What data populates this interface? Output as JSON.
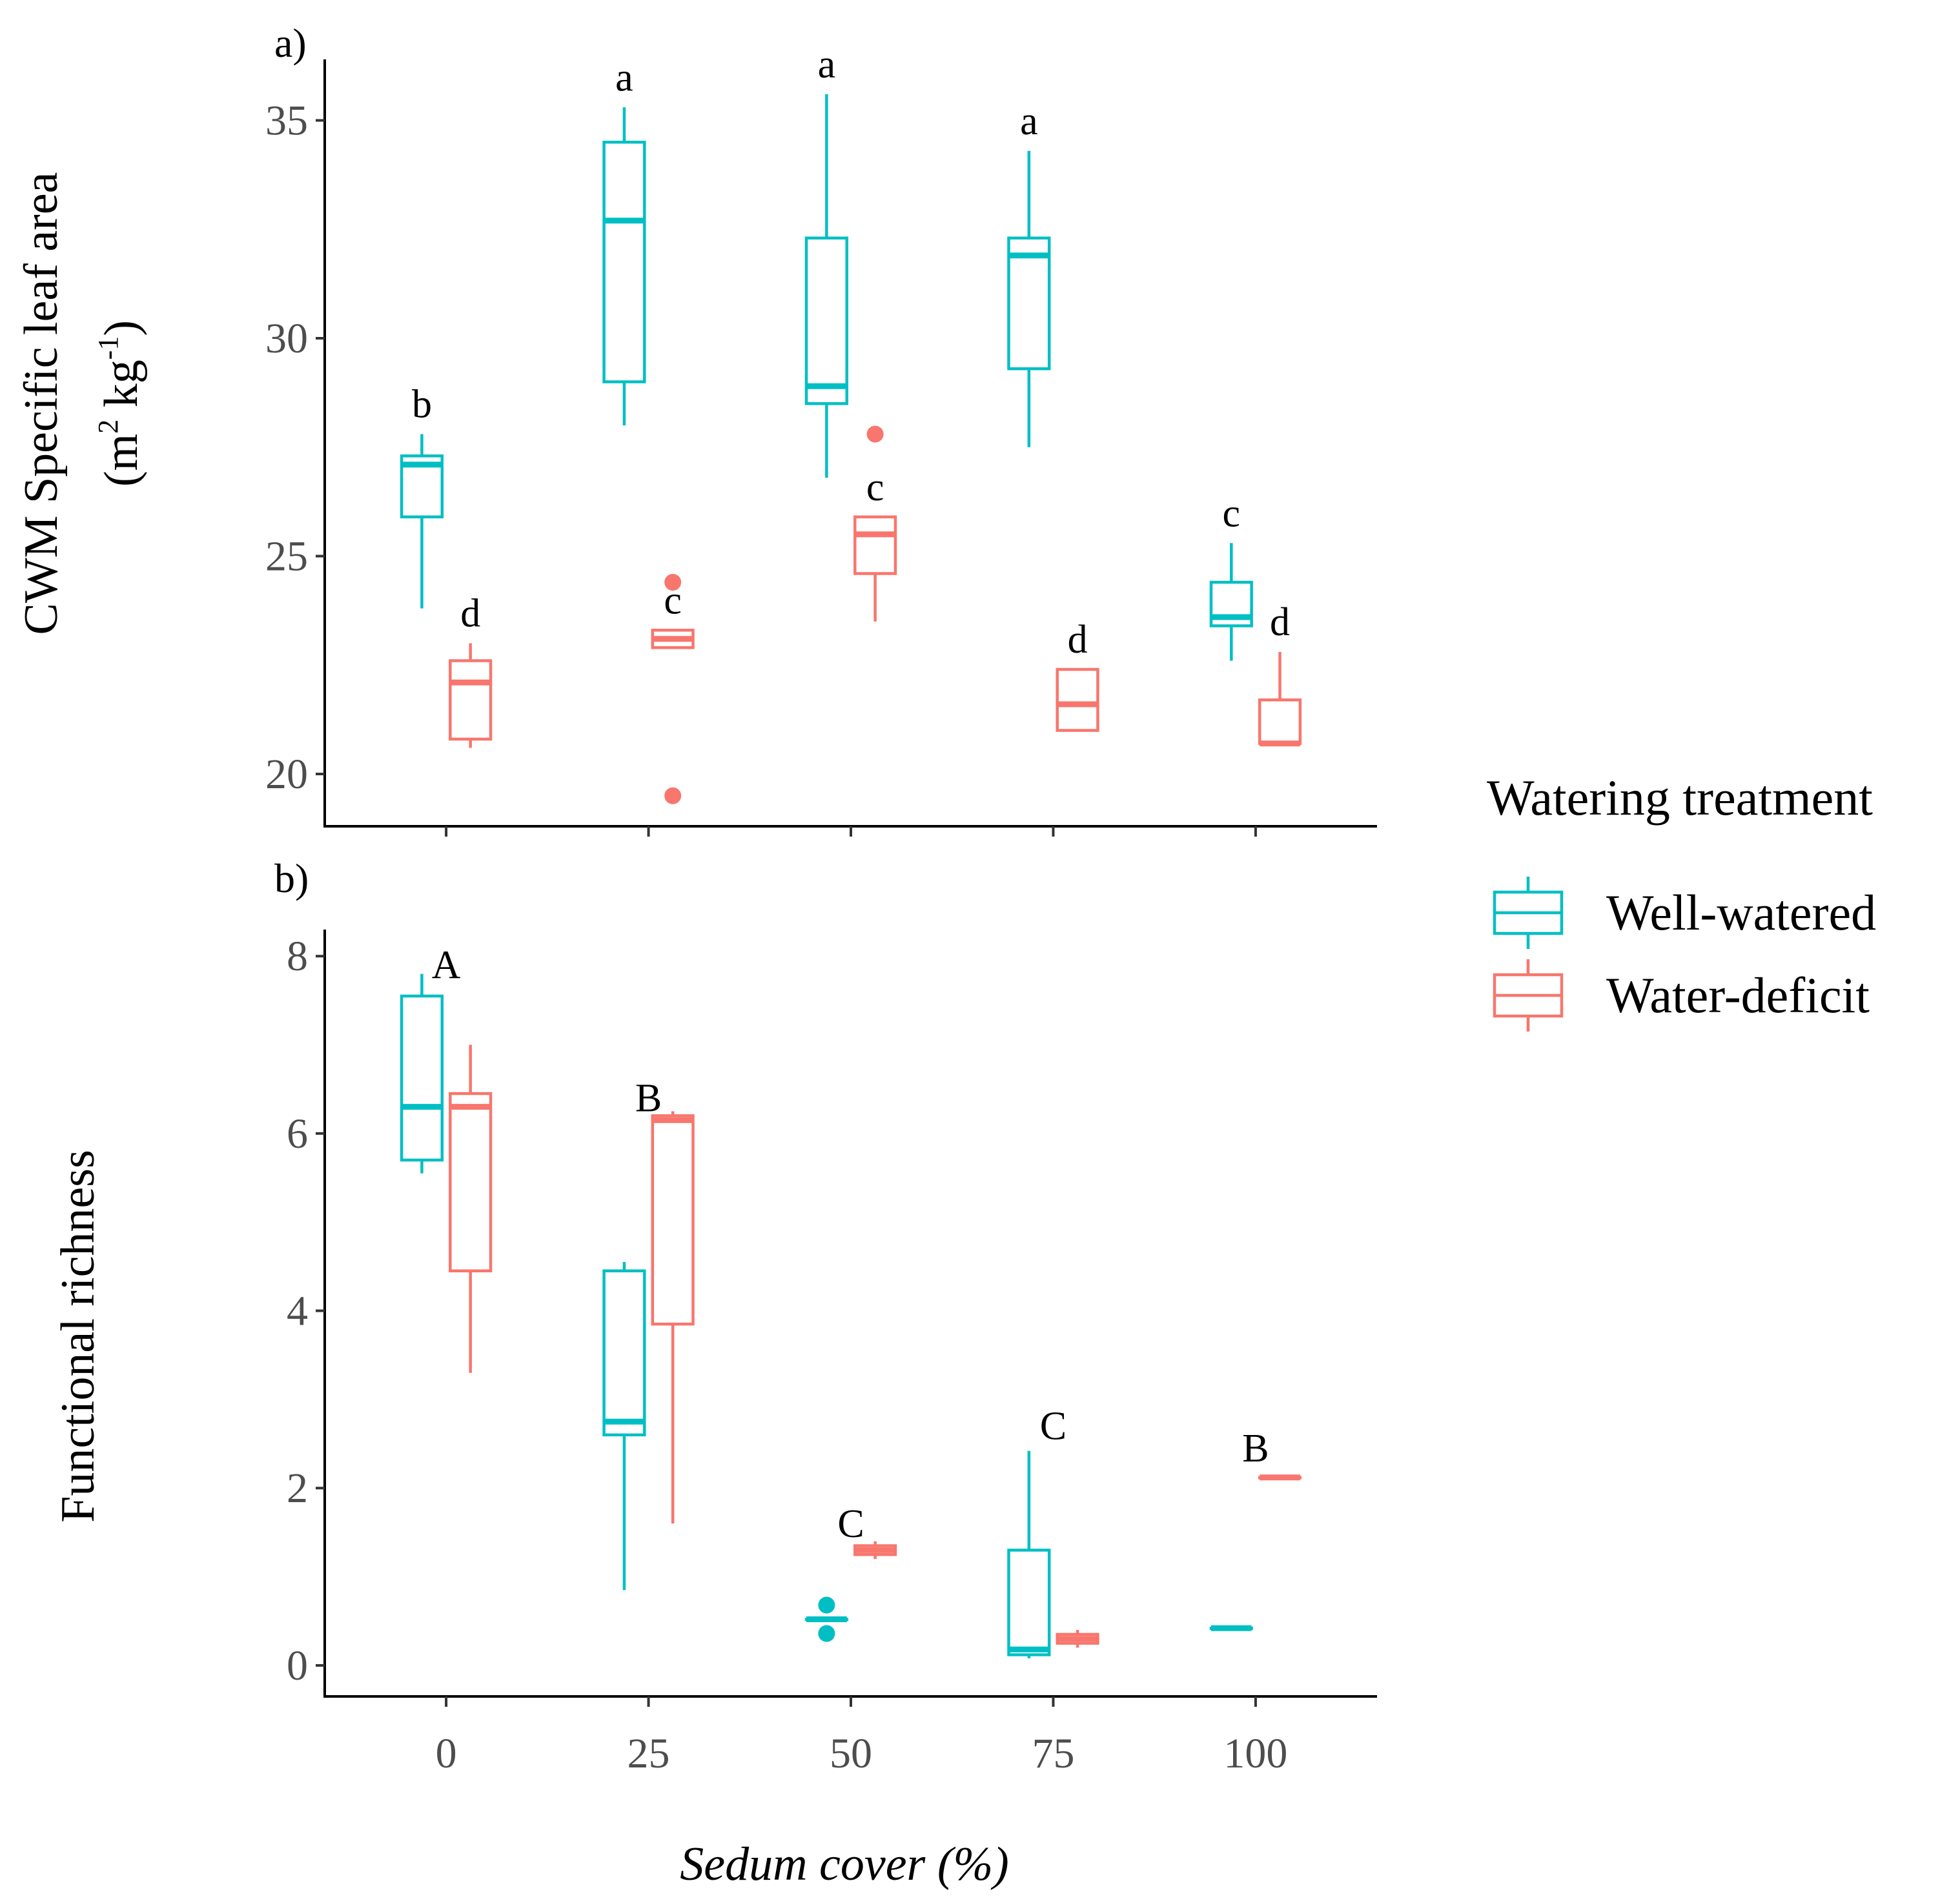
{
  "chart_data": [
    {
      "panel": "a)",
      "type": "boxplot",
      "ylabel": "CWM Specific leaf area",
      "ylabel_units": {
        "open": "(m",
        "sup1": "2",
        "mid": " kg",
        "sup2": "-1",
        "close": ")"
      },
      "xlim": [
        -15,
        115
      ],
      "ylim": [
        18.8,
        36.4
      ],
      "yticks": [
        20,
        25,
        30,
        35
      ],
      "xticks": [
        0,
        25,
        50,
        75,
        100
      ],
      "series": [
        {
          "name": "Well-watered",
          "boxes": [
            {
              "x": 0,
              "whisker_low": 23.8,
              "q1": 25.9,
              "median": 27.1,
              "q3": 27.3,
              "whisker_high": 27.8,
              "outliers": [],
              "letter": "b"
            },
            {
              "x": 25,
              "whisker_low": 28.0,
              "q1": 29.0,
              "median": 32.7,
              "q3": 34.5,
              "whisker_high": 35.3,
              "outliers": [],
              "letter": "a"
            },
            {
              "x": 50,
              "whisker_low": 26.8,
              "q1": 28.5,
              "median": 28.9,
              "q3": 32.3,
              "whisker_high": 35.6,
              "outliers": [],
              "letter": "a"
            },
            {
              "x": 75,
              "whisker_low": 27.5,
              "q1": 29.3,
              "median": 31.9,
              "q3": 32.3,
              "whisker_high": 34.3,
              "outliers": [],
              "letter": "a"
            },
            {
              "x": 100,
              "whisker_low": 22.6,
              "q1": 23.4,
              "median": 23.6,
              "q3": 24.4,
              "whisker_high": 25.3,
              "outliers": [],
              "letter": "c"
            }
          ]
        },
        {
          "name": "Water-deficit",
          "boxes": [
            {
              "x": 0,
              "whisker_low": 20.6,
              "q1": 20.8,
              "median": 22.1,
              "q3": 22.6,
              "whisker_high": 23.0,
              "outliers": [],
              "letter": "d"
            },
            {
              "x": 25,
              "whisker_low": 22.9,
              "q1": 22.9,
              "median": 23.1,
              "q3": 23.3,
              "whisker_high": 23.3,
              "outliers": [
                24.4,
                19.5
              ],
              "letter": "c"
            },
            {
              "x": 50,
              "whisker_low": 23.5,
              "q1": 24.6,
              "median": 25.5,
              "q3": 25.9,
              "whisker_high": 25.9,
              "outliers": [
                27.8
              ],
              "letter": "c"
            },
            {
              "x": 75,
              "whisker_low": 21.0,
              "q1": 21.0,
              "median": 21.6,
              "q3": 22.4,
              "whisker_high": 22.4,
              "outliers": [],
              "letter": "d"
            },
            {
              "x": 100,
              "whisker_low": 20.7,
              "q1": 20.7,
              "median": 20.7,
              "q3": 21.7,
              "whisker_high": 22.8,
              "outliers": [],
              "letter": "d"
            }
          ]
        }
      ]
    },
    {
      "panel": "b)",
      "type": "boxplot",
      "ylabel": "Functional richness",
      "xlabel": "Sedum cover (%)",
      "xlim": [
        -15,
        115
      ],
      "ylim": [
        -0.35,
        8.3
      ],
      "yticks": [
        0,
        2,
        4,
        6,
        8
      ],
      "xticks": [
        0,
        25,
        50,
        75,
        100
      ],
      "group_letters": [
        {
          "x": 0,
          "y": 7.75,
          "letter": "A"
        },
        {
          "x": 25,
          "y": 6.25,
          "letter": "B"
        },
        {
          "x": 50,
          "y": 1.45,
          "letter": "C"
        },
        {
          "x": 75,
          "y": 2.55,
          "letter": "C"
        },
        {
          "x": 100,
          "y": 2.3,
          "letter": "B"
        }
      ],
      "series": [
        {
          "name": "Well-watered",
          "boxes": [
            {
              "x": 0,
              "whisker_low": 5.55,
              "q1": 5.7,
              "median": 6.3,
              "q3": 7.55,
              "whisker_high": 7.8,
              "outliers": []
            },
            {
              "x": 25,
              "whisker_low": 0.85,
              "q1": 2.6,
              "median": 2.75,
              "q3": 4.45,
              "whisker_high": 4.55,
              "outliers": []
            },
            {
              "x": 50,
              "whisker_low": 0.52,
              "q1": 0.52,
              "median": 0.52,
              "q3": 0.52,
              "whisker_high": 0.52,
              "outliers": [
                0.68,
                0.36
              ]
            },
            {
              "x": 75,
              "whisker_low": 0.08,
              "q1": 0.12,
              "median": 0.18,
              "q3": 1.3,
              "whisker_high": 2.42,
              "outliers": []
            },
            {
              "x": 100,
              "whisker_low": 0.42,
              "q1": 0.42,
              "median": 0.42,
              "q3": 0.42,
              "whisker_high": 0.42,
              "outliers": []
            }
          ]
        },
        {
          "name": "Water-deficit",
          "boxes": [
            {
              "x": 0,
              "whisker_low": 3.3,
              "q1": 4.45,
              "median": 6.3,
              "q3": 6.45,
              "whisker_high": 7.0,
              "outliers": []
            },
            {
              "x": 25,
              "whisker_low": 1.6,
              "q1": 3.85,
              "median": 6.15,
              "q3": 6.2,
              "whisker_high": 6.25,
              "outliers": []
            },
            {
              "x": 50,
              "whisker_low": 1.2,
              "q1": 1.25,
              "median": 1.3,
              "q3": 1.35,
              "whisker_high": 1.4,
              "outliers": []
            },
            {
              "x": 75,
              "whisker_low": 0.2,
              "q1": 0.25,
              "median": 0.3,
              "q3": 0.35,
              "whisker_high": 0.4,
              "outliers": []
            },
            {
              "x": 100,
              "whisker_low": 2.12,
              "q1": 2.12,
              "median": 2.12,
              "q3": 2.12,
              "whisker_high": 2.12,
              "outliers": []
            }
          ]
        }
      ]
    }
  ],
  "legend": {
    "title": "Watering treatment",
    "items": [
      {
        "label": "Well-watered",
        "color": "#00BFC4"
      },
      {
        "label": "Water-deficit",
        "color": "#F8766D"
      }
    ]
  },
  "xlabel": "Sedum cover (%)"
}
